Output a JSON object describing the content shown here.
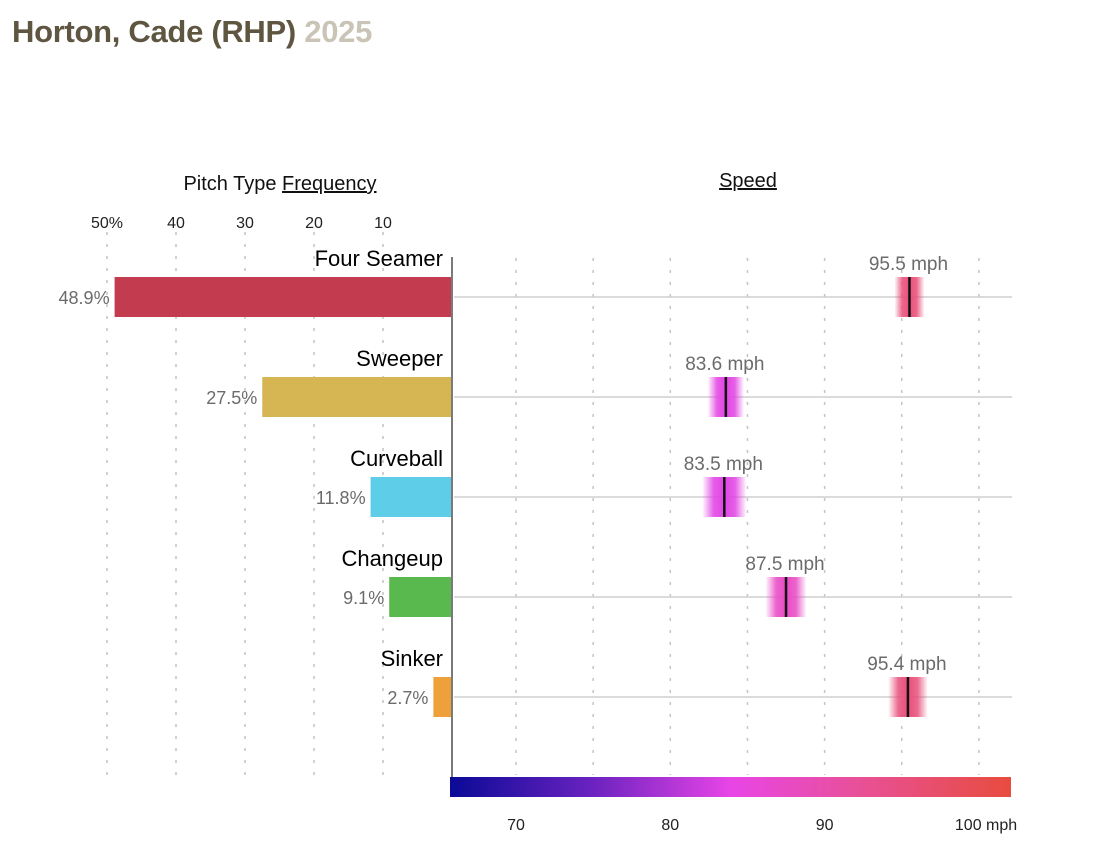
{
  "header": {
    "player": "Horton, Cade (RHP)",
    "season": "2025"
  },
  "chart_data": {
    "type": "bar",
    "panels": [
      {
        "name": "frequency",
        "title_prefix": "Pitch Type ",
        "title_link": "Frequency",
        "orientation": "horizontal-leftward",
        "xlim": [
          0,
          50
        ],
        "ticks": [
          50,
          40,
          30,
          20,
          10
        ],
        "tick_labels": [
          "50%",
          "40",
          "30",
          "20",
          "10"
        ],
        "grid": true
      },
      {
        "name": "speed",
        "title_link": "Speed",
        "unit": "mph",
        "xlim": [
          65.9,
          102
        ],
        "grid_values": [
          70,
          75,
          80,
          85,
          90,
          95,
          100
        ],
        "ticks": [
          70,
          80,
          90,
          100
        ],
        "tick_labels": [
          "70",
          "80",
          "90",
          "100 mph"
        ],
        "color_scale": {
          "stops": [
            {
              "mph": 65.9,
              "color": "#0a0a96"
            },
            {
              "mph": 75,
              "color": "#6a22c0"
            },
            {
              "mph": 84,
              "color": "#e845e6"
            },
            {
              "mph": 92,
              "color": "#e8509a"
            },
            {
              "mph": 102,
              "color": "#e84c3e"
            }
          ]
        }
      }
    ],
    "categories": [
      "Four Seamer",
      "Sweeper",
      "Curveball",
      "Changeup",
      "Sinker"
    ],
    "series": [
      {
        "name": "Frequency (%)",
        "values": [
          48.9,
          27.5,
          11.8,
          9.1,
          2.7
        ],
        "labels": [
          "48.9%",
          "27.5%",
          "11.8%",
          "9.1%",
          "2.7%"
        ],
        "colors": [
          "#c23b4e",
          "#d6b553",
          "#5dcde8",
          "#5ab94e",
          "#eea13a"
        ]
      },
      {
        "name": "Average Speed (mph)",
        "values": [
          95.5,
          83.6,
          83.5,
          87.5,
          95.4
        ],
        "labels": [
          "95.5 mph",
          "83.6 mph",
          "83.5 mph",
          "87.5 mph",
          "95.4 mph"
        ],
        "spread_mph": [
          1.9,
          2.3,
          2.8,
          2.6,
          2.5
        ]
      }
    ]
  }
}
